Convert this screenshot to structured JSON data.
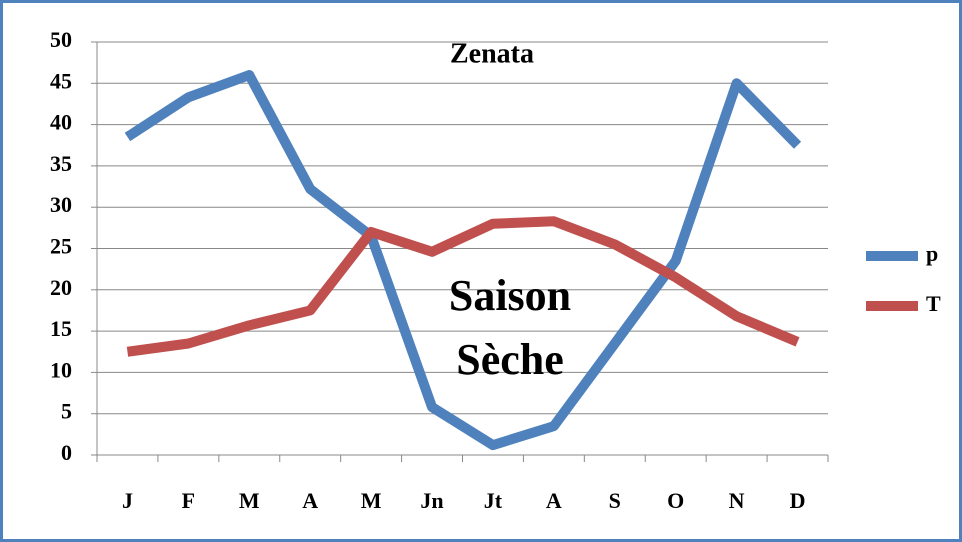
{
  "chart_data": {
    "type": "line",
    "title": "Zenata",
    "annotation": [
      "Saison",
      "Sèche"
    ],
    "categories": [
      "J",
      "F",
      "M",
      "A",
      "M",
      "Jn",
      "Jt",
      "A",
      "S",
      "O",
      "N",
      "D"
    ],
    "series": [
      {
        "name": "p",
        "color": "#4f81bd",
        "values": [
          38.5,
          43.3,
          46,
          32.2,
          26.5,
          5.8,
          1.2,
          3.5,
          13.5,
          23.5,
          45,
          37.5
        ]
      },
      {
        "name": "T",
        "color": "#c0504d",
        "values": [
          12.5,
          13.5,
          15.7,
          17.5,
          27,
          24.6,
          28,
          28.3,
          25.5,
          21.5,
          16.8,
          13.7
        ]
      }
    ],
    "ylim": [
      0,
      50
    ],
    "yticks": [
      0,
      5,
      10,
      15,
      20,
      25,
      30,
      35,
      40,
      45,
      50
    ],
    "grid": true,
    "legend": "right"
  }
}
